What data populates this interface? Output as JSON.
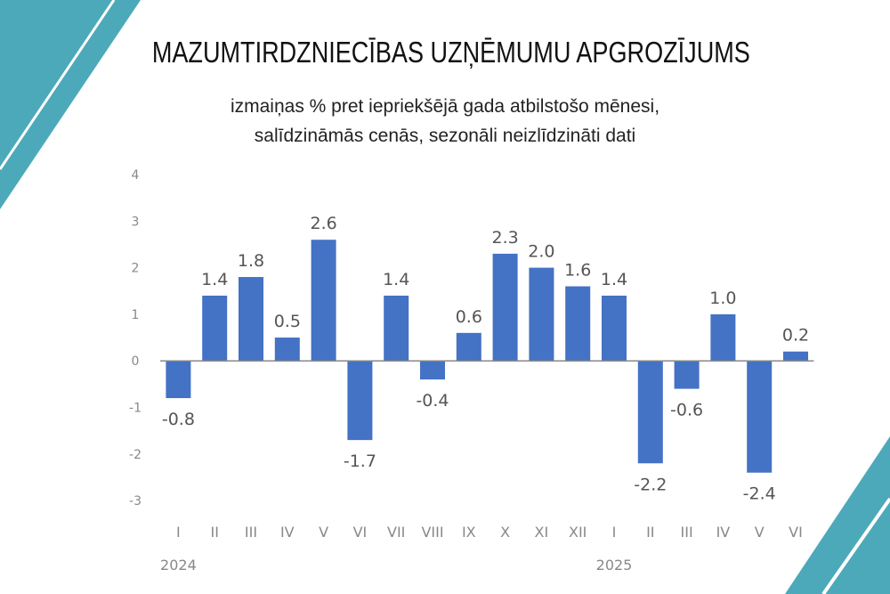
{
  "colors": {
    "accent": "#4ca9b9",
    "bar": "#4472c4",
    "axis": "#888888",
    "label": "#555555"
  },
  "chart_data": {
    "type": "bar",
    "title": "MAZUMTIRDZNIECĪBAS UZŅĒMUMU APGROZĪJUMS",
    "subtitle": [
      "izmaiņas % pret iepriekšējā gada atbilstošo mēnesi,",
      "salīdzināmās cenās, sezonāli neizlīdzināti dati"
    ],
    "categories": [
      "I",
      "II",
      "III",
      "IV",
      "V",
      "VI",
      "VII",
      "VIII",
      "IX",
      "X",
      "XI",
      "XII",
      "I",
      "II",
      "III",
      "IV",
      "V",
      "VI"
    ],
    "years": [
      {
        "label": "2024",
        "start_index": 0
      },
      {
        "label": "2025",
        "start_index": 12
      }
    ],
    "values": [
      -0.8,
      1.4,
      1.8,
      0.5,
      2.6,
      -1.7,
      1.4,
      -0.4,
      0.6,
      2.3,
      2.0,
      1.6,
      1.4,
      -2.2,
      -0.6,
      1.0,
      -2.4,
      0.2
    ],
    "value_labels": [
      "-0.8",
      "1.4",
      "1.8",
      "0.5",
      "2.6",
      "-1.7",
      "1.4",
      "-0.4",
      "0.6",
      "2.3",
      "2.0",
      "1.6",
      "1.4",
      "-2.2",
      "-0.6",
      "1.0",
      "-2.4",
      "0.2"
    ],
    "ylim": [
      -3,
      4
    ],
    "yticks": [
      "-3",
      "-2",
      "-1",
      "0",
      "1",
      "2",
      "3",
      "4"
    ],
    "grid": false,
    "legend": "none"
  }
}
